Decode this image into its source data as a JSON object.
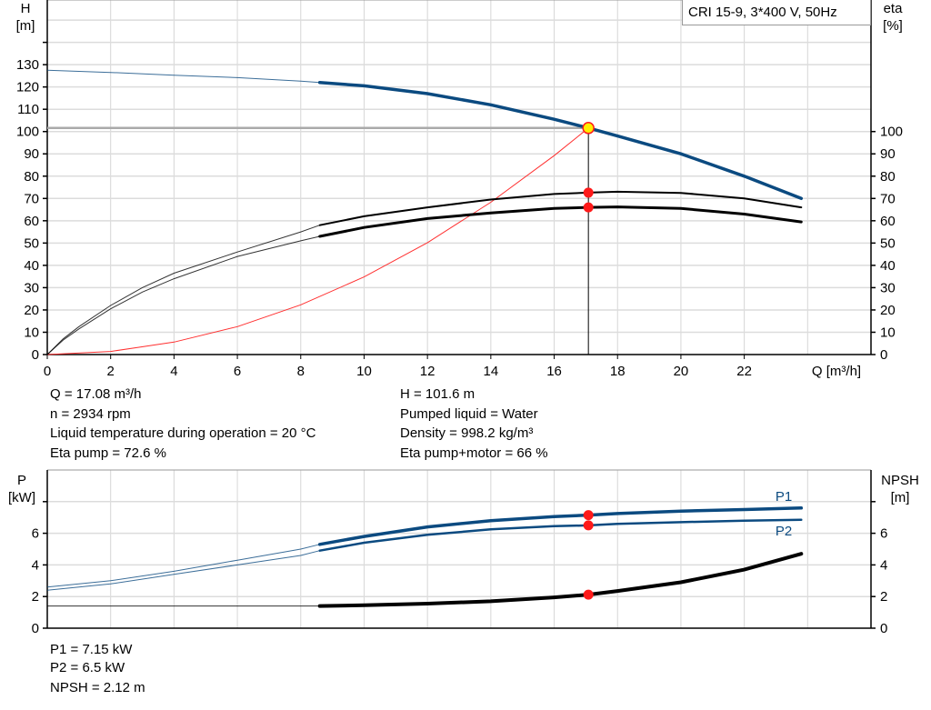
{
  "chart_data": [
    {
      "type": "line",
      "title": "CRI 15-9, 3*400 V, 50Hz",
      "xlabel": "Q [m³/h]",
      "ylabel_left": {
        "name": "H",
        "unit": "[m]"
      },
      "ylabel_right": {
        "name": "eta",
        "unit": "[%]"
      },
      "xlim": [
        0,
        26
      ],
      "ylim_left": [
        0,
        159
      ],
      "ylim_right": [
        0,
        159
      ],
      "x_ticks": [
        0,
        2,
        4,
        6,
        8,
        10,
        12,
        14,
        16,
        18,
        20,
        22
      ],
      "y_ticks_left": [
        0,
        10,
        20,
        30,
        40,
        50,
        60,
        70,
        80,
        90,
        100,
        110,
        120,
        130
      ],
      "y_ticks_right": [
        0,
        10,
        20,
        30,
        40,
        50,
        60,
        70,
        80,
        90,
        100
      ],
      "grid": true,
      "series": [
        {
          "id": "head",
          "color": "#0b4a80",
          "operating_range": [
            8.6,
            23.8
          ],
          "x": [
            0,
            2,
            4,
            6,
            8,
            8.6,
            10,
            12,
            14,
            16,
            17.08,
            18,
            20,
            22,
            23.8
          ],
          "y": [
            127.5,
            126.5,
            125.3,
            124.2,
            122.6,
            122,
            120.5,
            117,
            112,
            105.5,
            101.6,
            98,
            90,
            80,
            70
          ]
        },
        {
          "id": "eta-pump",
          "color": "#000000",
          "operating_range": [
            8.6,
            23.8
          ],
          "x": [
            0,
            0.5,
            1,
            2,
            3,
            4,
            6,
            8,
            8.6,
            10,
            12,
            14,
            16,
            17.08,
            18,
            20,
            22,
            23.8
          ],
          "y": [
            0,
            7,
            12.5,
            22,
            30,
            36.5,
            46,
            55,
            58,
            62,
            66,
            69.5,
            72,
            72.6,
            73,
            72.5,
            70,
            66
          ]
        },
        {
          "id": "eta-total",
          "color": "#000000",
          "operating_range": [
            8.6,
            23.8
          ],
          "x": [
            0,
            0.5,
            1,
            2,
            3,
            4,
            6,
            8,
            8.6,
            10,
            12,
            14,
            16,
            17.08,
            18,
            20,
            22,
            23.8
          ],
          "y": [
            0,
            6.5,
            11.5,
            20.5,
            28,
            34,
            44,
            51,
            53,
            57,
            61,
            63.5,
            65.5,
            66,
            66.2,
            65.5,
            63,
            59.5
          ]
        },
        {
          "id": "system-curve",
          "color": "#ff3030",
          "x": [
            0,
            2,
            4,
            6,
            8,
            10,
            12,
            14,
            16,
            17.08
          ],
          "y": [
            0,
            1.4,
            5.6,
            12.5,
            22.3,
            34.8,
            50.2,
            68.3,
            89.2,
            101.6
          ]
        }
      ],
      "duty_point": {
        "Q": 17.08,
        "H": 101.6,
        "eta_pump": 72.6,
        "eta_total": 66
      }
    },
    {
      "type": "line",
      "xlim": [
        0,
        26
      ],
      "ylabel_left": {
        "name": "P",
        "unit": "[kW]"
      },
      "ylabel_right": {
        "name": "NPSH",
        "unit": "[m]"
      },
      "ylim_left": [
        0,
        10
      ],
      "ylim_right": [
        0,
        10
      ],
      "y_ticks_left": [
        0,
        2,
        4,
        6,
        8
      ],
      "y_ticks_left_labels": [
        "0",
        "2",
        "4",
        "6",
        ""
      ],
      "y_ticks_right": [
        0,
        2,
        4,
        6,
        8
      ],
      "y_ticks_right_labels": [
        "0",
        "2",
        "4",
        "6",
        ""
      ],
      "grid": true,
      "series": [
        {
          "id": "P1",
          "name": "P1",
          "color": "#0b4a80",
          "operating_range": [
            8.6,
            23.8
          ],
          "x": [
            0,
            2,
            4,
            6,
            8,
            8.6,
            10,
            12,
            14,
            16,
            17.08,
            18,
            20,
            22,
            23.8
          ],
          "y": [
            2.6,
            3.0,
            3.6,
            4.3,
            5.0,
            5.3,
            5.8,
            6.4,
            6.8,
            7.05,
            7.15,
            7.25,
            7.4,
            7.5,
            7.6
          ]
        },
        {
          "id": "P2",
          "name": "P2",
          "color": "#0b4a80",
          "operating_range": [
            8.6,
            23.8
          ],
          "x": [
            0,
            2,
            4,
            6,
            8,
            8.6,
            10,
            12,
            14,
            16,
            17.08,
            18,
            20,
            22,
            23.8
          ],
          "y": [
            2.4,
            2.8,
            3.4,
            4.0,
            4.6,
            4.9,
            5.4,
            5.9,
            6.25,
            6.45,
            6.5,
            6.6,
            6.7,
            6.8,
            6.85
          ]
        },
        {
          "id": "NPSH",
          "color": "#000000",
          "operating_range": [
            8.6,
            23.8
          ],
          "x": [
            0,
            2,
            4,
            6,
            8,
            8.6,
            10,
            12,
            14,
            16,
            17.08,
            18,
            20,
            22,
            23.8
          ],
          "y": [
            1.4,
            1.4,
            1.4,
            1.4,
            1.4,
            1.4,
            1.45,
            1.55,
            1.7,
            1.95,
            2.12,
            2.35,
            2.9,
            3.7,
            4.7
          ]
        }
      ],
      "duty_point": {
        "Q": 17.08,
        "P1": 7.15,
        "P2": 6.5,
        "NPSH": 2.12
      }
    }
  ],
  "info": {
    "left": [
      "Q = 17.08 m³/h",
      "n = 2934 rpm",
      "Liquid temperature during operation = 20 °C",
      "Eta pump = 72.6 %"
    ],
    "right": [
      "H = 101.6 m",
      "Pumped liquid = Water",
      "Density = 998.2 kg/m³",
      "Eta pump+motor = 66 %"
    ],
    "bottom": [
      "P1 = 7.15 kW",
      "P2 = 6.5 kW",
      "NPSH = 2.12 m"
    ]
  }
}
